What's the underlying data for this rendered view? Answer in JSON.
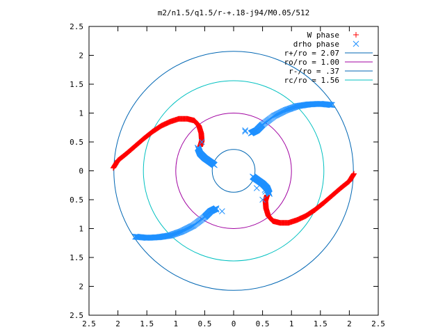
{
  "chart_data": {
    "type": "scatter",
    "title": "m2/n1.5/q1.5/r-+.18-j94/M0.05/512",
    "xlim": [
      -2.5,
      2.5
    ],
    "ylim": [
      -2.5,
      2.5
    ],
    "x_tick_labels": [
      "2.5",
      "2",
      "1.5",
      "1",
      "0.5",
      "0",
      "0.5",
      "1",
      "1.5",
      "2",
      "2.5"
    ],
    "y_tick_labels": [
      "2.5",
      "2",
      "1.5",
      "1",
      "0.5",
      "0",
      "0.5",
      "1",
      "1.5",
      "2",
      "2.5"
    ],
    "grid": false,
    "legend_position": "top-right",
    "series": [
      {
        "name": "W phase",
        "kind": "points",
        "marker": "plus",
        "color": "#ff0000",
        "arms": [
          {
            "x": [
              -2.08,
              -2.0,
              -1.85,
              -1.7,
              -1.55,
              -1.4,
              -1.25,
              -1.1,
              -0.95,
              -0.8,
              -0.68,
              -0.6,
              -0.56,
              -0.55,
              -0.57,
              -0.58
            ],
            "y": [
              0.05,
              0.18,
              0.3,
              0.43,
              0.56,
              0.68,
              0.78,
              0.85,
              0.9,
              0.9,
              0.87,
              0.78,
              0.65,
              0.52,
              0.45,
              0.42
            ]
          },
          {
            "x": [
              2.08,
              2.0,
              1.85,
              1.7,
              1.55,
              1.4,
              1.25,
              1.1,
              0.95,
              0.8,
              0.68,
              0.6,
              0.56,
              0.55,
              0.57,
              0.58
            ],
            "y": [
              -0.05,
              -0.18,
              -0.3,
              -0.43,
              -0.56,
              -0.68,
              -0.78,
              -0.85,
              -0.9,
              -0.9,
              -0.87,
              -0.78,
              -0.65,
              -0.52,
              -0.45,
              -0.42
            ]
          }
        ]
      },
      {
        "name": "drho phase",
        "kind": "points",
        "marker": "cross",
        "color": "#1e90ff",
        "arms": [
          {
            "x": [
              -0.62,
              -0.58,
              -0.5,
              -0.4,
              -0.33
            ],
            "y": [
              0.4,
              0.3,
              0.22,
              0.15,
              0.1
            ]
          },
          {
            "x": [
              0.3,
              0.4,
              0.5,
              0.7,
              0.9,
              1.1,
              1.3,
              1.5,
              1.7
            ],
            "y": [
              0.65,
              0.7,
              0.8,
              0.95,
              1.05,
              1.12,
              1.15,
              1.16,
              1.14
            ]
          },
          {
            "x": [
              0.62,
              0.58,
              0.5,
              0.4,
              0.33
            ],
            "y": [
              -0.4,
              -0.3,
              -0.22,
              -0.15,
              -0.1
            ]
          },
          {
            "x": [
              -0.3,
              -0.4,
              -0.5,
              -0.7,
              -0.9,
              -1.1,
              -1.3,
              -1.5,
              -1.7
            ],
            "y": [
              -0.65,
              -0.7,
              -0.8,
              -0.95,
              -1.05,
              -1.12,
              -1.15,
              -1.16,
              -1.14
            ]
          }
        ],
        "stray_points": {
          "x": [
            -0.2,
            -0.3,
            -0.55,
            0.2,
            0.2,
            0.4,
            0.5,
            0.54,
            0.55
          ],
          "y": [
            -0.7,
            -0.67,
            0.5,
            0.7,
            0.68,
            -0.3,
            -0.5,
            -0.33,
            -0.36
          ]
        }
      },
      {
        "name": "r+/ro = 2.07",
        "kind": "circle",
        "radius": 2.07,
        "color": "#0066b3"
      },
      {
        "name": "ro/ro = 1.00",
        "kind": "circle",
        "radius": 1.0,
        "color": "#a000a0"
      },
      {
        "name": "r-/ro = .37",
        "kind": "circle",
        "radius": 0.37,
        "color": "#0066b3"
      },
      {
        "name": "rc/ro = 1.56",
        "kind": "circle",
        "radius": 1.56,
        "color": "#00c0c0"
      }
    ]
  }
}
